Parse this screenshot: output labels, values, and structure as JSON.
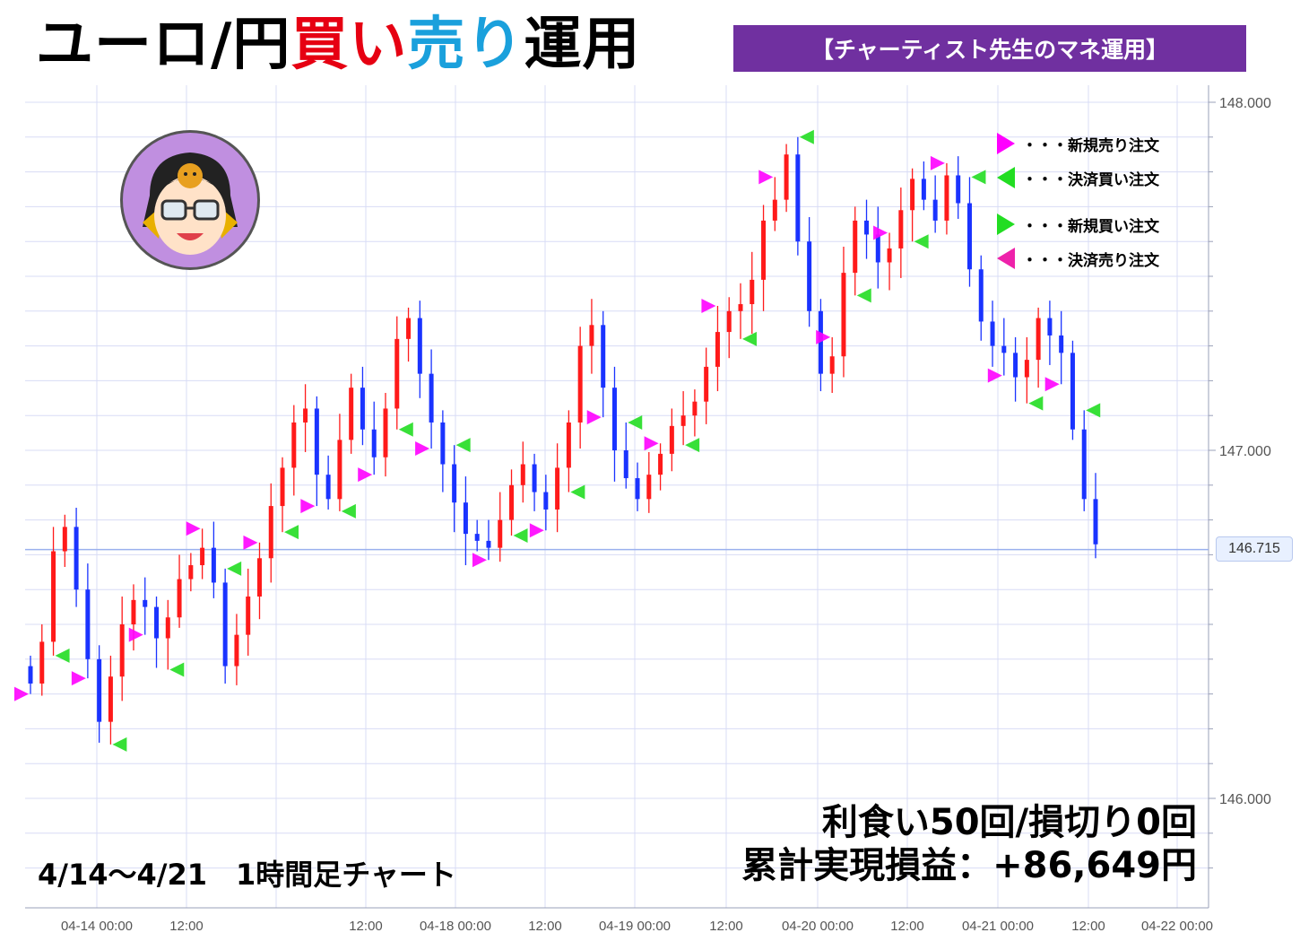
{
  "header": {
    "title_prefix": "ユーロ/円",
    "title_buy": "買い",
    "title_sell": "売り",
    "title_suffix": "運用",
    "banner": "【チャーティスト先生のマネ運用】"
  },
  "legend": [
    {
      "icon": "magenta-right-triangle",
      "label": "・・・新規売り注文",
      "color": "#ff00ff"
    },
    {
      "icon": "green-left-triangle",
      "label": "・・・決済買い注文",
      "color": "#22dd22"
    },
    {
      "icon": "green-right-triangle",
      "label": "・・・新規買い注文",
      "color": "#22dd22"
    },
    {
      "icon": "magenta-left-triangle",
      "label": "・・・決済売り注文",
      "color": "#ee22aa"
    }
  ],
  "summary": {
    "trades": "利食い50回/損切り0回",
    "profit": "累計実現損益：+86,649円"
  },
  "period_label": "4/14～4/21　1時間足チャート",
  "chart_data": {
    "type": "candlestick",
    "title": "",
    "y_ticks": [
      "148.000",
      "147.000",
      "146.000"
    ],
    "y_tick_values": [
      148.0,
      147.0,
      146.0
    ],
    "ylim": [
      145.75,
      148.25
    ],
    "x_ticks": [
      "04-14 00:00",
      "12:00",
      "12:00",
      "04-18 00:00",
      "12:00",
      "04-19 00:00",
      "12:00",
      "04-20 00:00",
      "12:00",
      "04-21 00:00",
      "12:00",
      "04-22 00:00"
    ],
    "current_price": "146.715",
    "current_price_value": 146.715,
    "colors": {
      "up": "#ff1a1a",
      "down": "#1a33ff",
      "grid": "#d8dcf5",
      "sell_new": "#ff00ff",
      "buy_close": "#22dd22"
    },
    "candles_close": [
      146.33,
      146.45,
      146.71,
      146.78,
      146.6,
      146.4,
      146.22,
      146.35,
      146.5,
      146.57,
      146.55,
      146.46,
      146.52,
      146.63,
      146.67,
      146.72,
      146.62,
      146.38,
      146.47,
      146.58,
      146.69,
      146.84,
      146.95,
      147.08,
      147.12,
      146.93,
      146.86,
      147.03,
      147.18,
      147.06,
      146.98,
      147.12,
      147.32,
      147.38,
      147.22,
      147.08,
      146.96,
      146.85,
      146.76,
      146.74,
      146.72,
      146.8,
      146.9,
      146.96,
      146.88,
      146.83,
      146.95,
      147.08,
      147.3,
      147.36,
      147.18,
      147.0,
      146.92,
      146.86,
      146.93,
      146.99,
      147.07,
      147.1,
      147.14,
      147.24,
      147.34,
      147.4,
      147.42,
      147.49,
      147.66,
      147.72,
      147.85,
      147.6,
      147.4,
      147.22,
      147.27,
      147.51,
      147.66,
      147.62,
      147.54,
      147.58,
      147.69,
      147.78,
      147.72,
      147.66,
      147.79,
      147.71,
      147.52,
      147.37,
      147.3,
      147.28,
      147.21,
      147.26,
      147.38,
      147.33,
      147.28,
      147.06,
      146.86,
      146.73
    ]
  }
}
